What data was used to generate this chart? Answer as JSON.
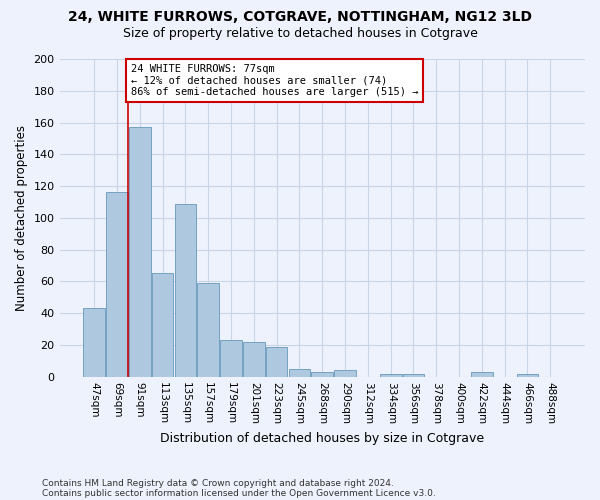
{
  "title": "24, WHITE FURROWS, COTGRAVE, NOTTINGHAM, NG12 3LD",
  "subtitle": "Size of property relative to detached houses in Cotgrave",
  "xlabel": "Distribution of detached houses by size in Cotgrave",
  "ylabel": "Number of detached properties",
  "footnote1": "Contains HM Land Registry data © Crown copyright and database right 2024.",
  "footnote2": "Contains public sector information licensed under the Open Government Licence v3.0.",
  "categories": [
    "47sqm",
    "69sqm",
    "91sqm",
    "113sqm",
    "135sqm",
    "157sqm",
    "179sqm",
    "201sqm",
    "223sqm",
    "245sqm",
    "268sqm",
    "290sqm",
    "312sqm",
    "334sqm",
    "356sqm",
    "378sqm",
    "400sqm",
    "422sqm",
    "444sqm",
    "466sqm",
    "488sqm"
  ],
  "values": [
    43,
    116,
    157,
    65,
    109,
    59,
    23,
    22,
    19,
    5,
    3,
    4,
    0,
    2,
    2,
    0,
    0,
    3,
    0,
    2,
    0
  ],
  "bar_color": "#aec8e0",
  "bar_edge_color": "#6699bb",
  "grid_color": "#c8d4e8",
  "background_color": "#eef2fc",
  "red_line_x": 1.5,
  "annotation_text": "24 WHITE FURROWS: 77sqm\n← 12% of detached houses are smaller (74)\n86% of semi-detached houses are larger (515) →",
  "annotation_box_color": "#ffffff",
  "annotation_border_color": "#cc0000",
  "ylim": [
    0,
    200
  ],
  "yticks": [
    0,
    20,
    40,
    60,
    80,
    100,
    120,
    140,
    160,
    180,
    200
  ]
}
